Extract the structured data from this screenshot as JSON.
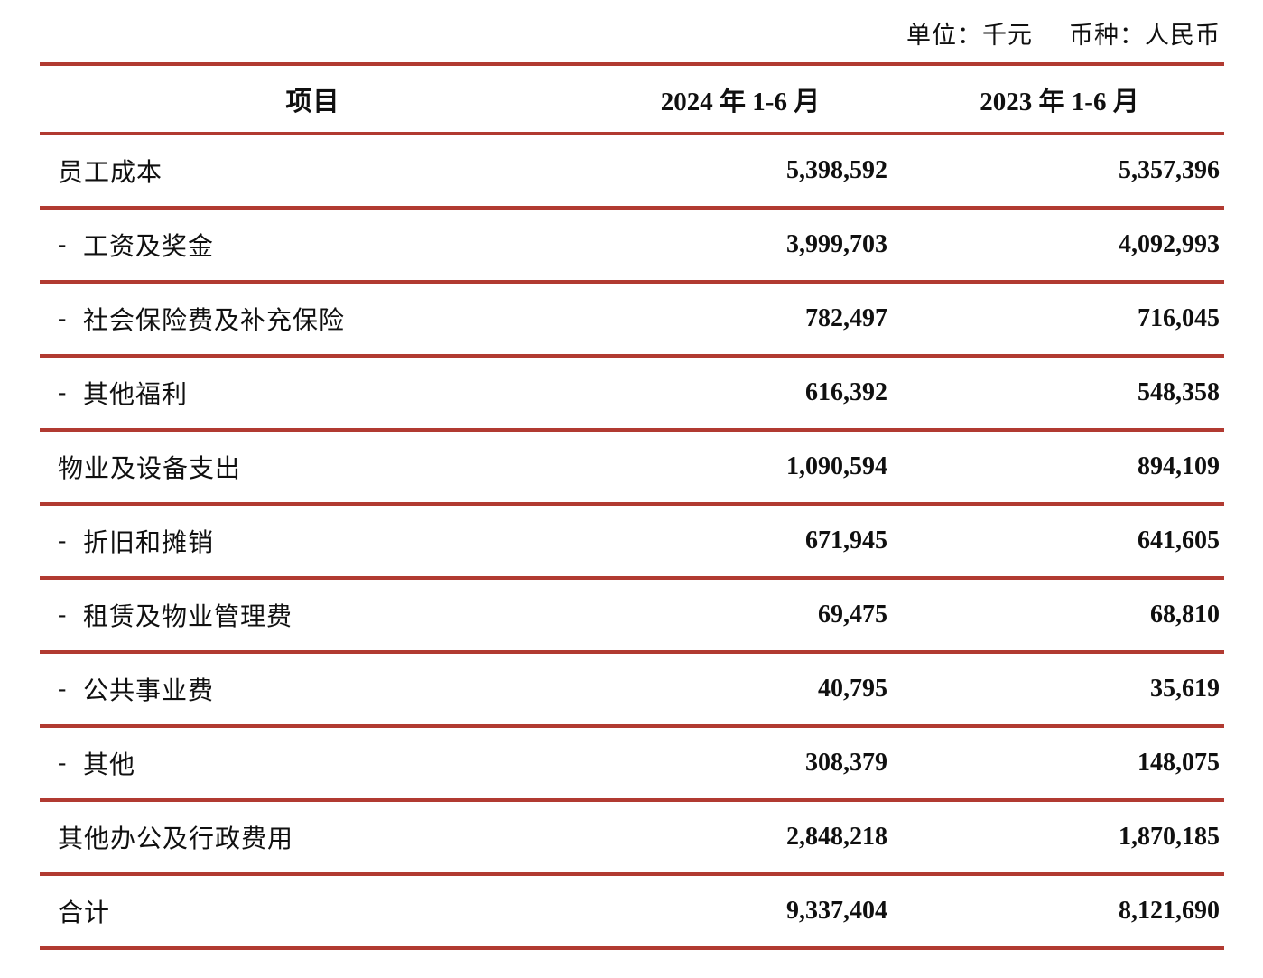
{
  "meta": {
    "unit_label": "单位：千元",
    "currency_label": "币种：人民币"
  },
  "colors": {
    "rule_red": "#b13a31"
  },
  "table": {
    "columns": [
      "项目",
      "2024 年 1-6 月",
      "2023 年 1-6 月"
    ],
    "dash_prefix": "-",
    "rows": [
      {
        "label": "员工成本",
        "indent": false,
        "v2024": "5,398,592",
        "v2023": "5,357,396"
      },
      {
        "label": "工资及奖金",
        "indent": true,
        "v2024": "3,999,703",
        "v2023": "4,092,993"
      },
      {
        "label": "社会保险费及补充保险",
        "indent": true,
        "v2024": "782,497",
        "v2023": "716,045"
      },
      {
        "label": "其他福利",
        "indent": true,
        "v2024": "616,392",
        "v2023": "548,358"
      },
      {
        "label": "物业及设备支出",
        "indent": false,
        "v2024": "1,090,594",
        "v2023": "894,109"
      },
      {
        "label": "折旧和摊销",
        "indent": true,
        "v2024": "671,945",
        "v2023": "641,605"
      },
      {
        "label": "租赁及物业管理费",
        "indent": true,
        "v2024": "69,475",
        "v2023": "68,810"
      },
      {
        "label": "公共事业费",
        "indent": true,
        "v2024": "40,795",
        "v2023": "35,619"
      },
      {
        "label": "其他",
        "indent": true,
        "v2024": "308,379",
        "v2023": "148,075"
      },
      {
        "label": "其他办公及行政费用",
        "indent": false,
        "v2024": "2,848,218",
        "v2023": "1,870,185"
      },
      {
        "label": "合计",
        "indent": false,
        "v2024": "9,337,404",
        "v2023": "8,121,690"
      }
    ]
  }
}
